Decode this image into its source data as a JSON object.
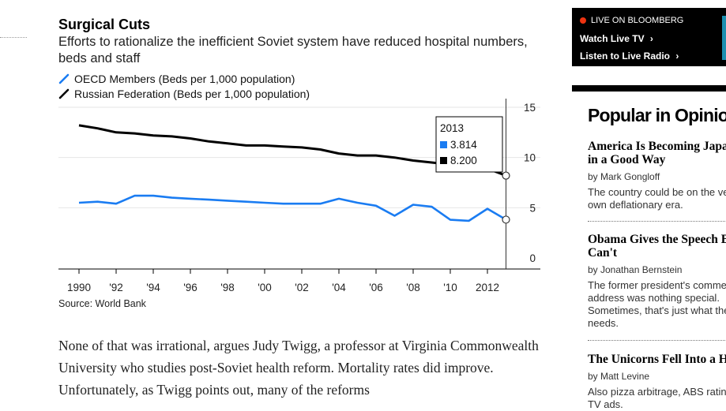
{
  "chart_section": {
    "title": "Surgical Cuts",
    "subtitle": "Efforts to rationalize the inefficient Soviet system have reduced hospital numbers, beds and staff",
    "source": "Source: World Bank",
    "colors": {
      "oecd": "#1a7cf2",
      "russia": "#000000"
    }
  },
  "chart_data": {
    "type": "line",
    "x": [
      1990,
      1991,
      1992,
      1993,
      1994,
      1995,
      1996,
      1997,
      1998,
      1999,
      2000,
      2001,
      2002,
      2003,
      2004,
      2005,
      2006,
      2007,
      2008,
      2009,
      2010,
      2011,
      2012,
      2013
    ],
    "series": [
      {
        "name": "OECD Members (Beds per 1,000 population)",
        "color": "#1a7cf2",
        "values": [
          5.5,
          5.6,
          5.4,
          6.2,
          6.2,
          6.0,
          5.9,
          5.8,
          5.7,
          5.6,
          5.5,
          5.4,
          5.4,
          5.4,
          5.9,
          5.5,
          5.2,
          4.2,
          5.3,
          5.1,
          3.8,
          3.7,
          4.9,
          3.814
        ]
      },
      {
        "name": "Russian Federation (Beds per 1,000 population)",
        "color": "#000000",
        "values": [
          13.2,
          12.9,
          12.5,
          12.4,
          12.2,
          12.1,
          11.9,
          11.6,
          11.4,
          11.2,
          11.2,
          11.1,
          11.0,
          10.8,
          10.4,
          10.2,
          10.2,
          10.0,
          9.7,
          9.5,
          9.3,
          9.1,
          8.9,
          8.2
        ]
      }
    ],
    "x_tick_labels": [
      "1990",
      "'92",
      "'94",
      "'96",
      "'98",
      "'00",
      "'02",
      "'04",
      "'06",
      "'08",
      "'10",
      "2012"
    ],
    "y_ticks": [
      "15",
      "10",
      "5",
      "0"
    ],
    "ylim": [
      0,
      15
    ],
    "grid": true,
    "tooltip": {
      "year": "2013",
      "oecd_value": "3.814",
      "russia_value": "8.200"
    }
  },
  "article": {
    "body": "None of that was irrational, argues Judy Twigg, a professor at Virginia Commonwealth University who studies post-Soviet health reform. Mortality rates did improve. Unfortunately, as Twigg points out, many of the reforms"
  },
  "live": {
    "label": "LIVE ON BLOOMBERG",
    "watch": "Watch Live TV",
    "listen": "Listen to Live Radio",
    "chevron": "›"
  },
  "opinion": {
    "heading": "Popular in Opinion",
    "items": [
      {
        "title": "America Is Becoming Japan\nin a Good Way",
        "author": "by Mark Gongloff",
        "desc": "The country could be on the verge of its\nown deflationary era."
      },
      {
        "title": "Obama Gives the Speech Biden\nCan't",
        "author": "by Jonathan Bernstein",
        "desc": "The former president's commencement\naddress was nothing special.\nSometimes, that's just what the moment\nneeds."
      },
      {
        "title": "The Unicorns Fell Into a Hole",
        "author": "by Matt Levine",
        "desc": "Also pizza arbitrage, ABS rating fights and\nTV ads."
      }
    ]
  }
}
